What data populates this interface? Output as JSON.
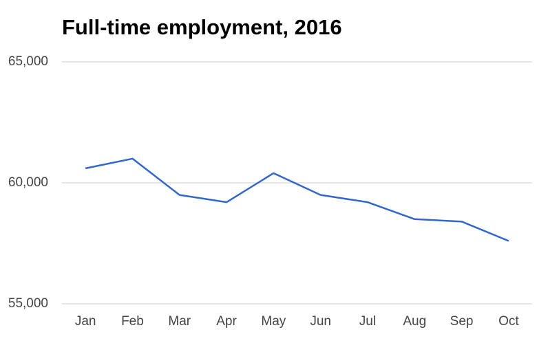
{
  "chart_data": {
    "type": "line",
    "title": "Full-time employment, 2016",
    "categories": [
      "Jan",
      "Feb",
      "Mar",
      "Apr",
      "May",
      "Jun",
      "Jul",
      "Aug",
      "Sep",
      "Oct"
    ],
    "values": [
      60600,
      61000,
      59500,
      59200,
      60400,
      59500,
      59200,
      58500,
      58400,
      57600
    ],
    "color": "#3366cc",
    "ylim": [
      55000,
      65000
    ],
    "yticks": [
      {
        "value": 55000,
        "label": "55,000"
      },
      {
        "value": 60000,
        "label": "60,000"
      },
      {
        "value": 65000,
        "label": "65,000"
      }
    ],
    "grid": true
  }
}
